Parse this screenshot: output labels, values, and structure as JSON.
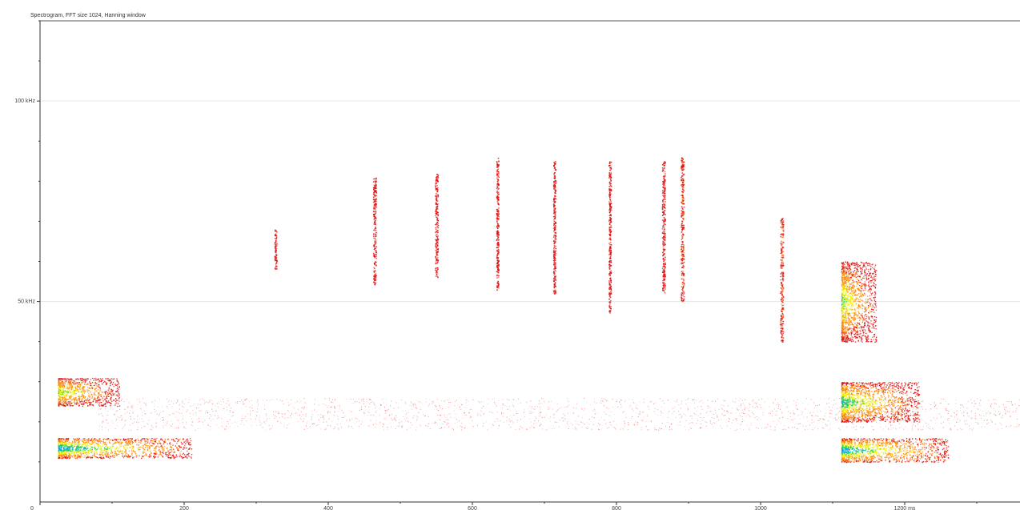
{
  "title": "Spectrogram, FFT size 1024, Hanning window",
  "chart_data": {
    "type": "heatmap",
    "title": "Spectrogram, FFT size 1024, Hanning window",
    "x_unit": "ms",
    "y_unit": "kHz",
    "xlim": [
      0,
      1360
    ],
    "ylim": [
      0,
      120
    ],
    "x_ticks": [
      {
        "value": 0,
        "label": "0"
      },
      {
        "value": 200,
        "label": "200"
      },
      {
        "value": 400,
        "label": "400"
      },
      {
        "value": 600,
        "label": "600"
      },
      {
        "value": 800,
        "label": "800"
      },
      {
        "value": 1000,
        "label": "1000"
      },
      {
        "value": 1200,
        "label": "1200 ms"
      }
    ],
    "y_ticks": [
      {
        "value": 100,
        "label": "100 kHz"
      },
      {
        "value": 50,
        "label": "50 kHz"
      }
    ],
    "grid": "horizontal at labeled kHz ticks",
    "colors": {
      "low": "#e01010",
      "mid": "#ff8800",
      "high": "#f0f000",
      "peak": "#20d040",
      "max": "#00a0e0",
      "grid": "#e6e6e6",
      "axis": "#333333"
    },
    "calls": [
      {
        "t": [
          25,
          110
        ],
        "f": [
          24,
          31
        ],
        "intensity": 0.8
      },
      {
        "t": [
          25,
          210
        ],
        "f": [
          11,
          16
        ],
        "intensity": 1.0
      },
      {
        "t": [
          325,
          328
        ],
        "f": [
          58,
          68
        ],
        "intensity": 0.5
      },
      {
        "t": [
          462,
          466
        ],
        "f": [
          54,
          81
        ],
        "intensity": 0.6
      },
      {
        "t": [
          548,
          552
        ],
        "f": [
          56,
          82
        ],
        "intensity": 0.6
      },
      {
        "t": [
          633,
          636
        ],
        "f": [
          53,
          86
        ],
        "intensity": 0.6
      },
      {
        "t": [
          712,
          715
        ],
        "f": [
          52,
          85
        ],
        "intensity": 0.6
      },
      {
        "t": [
          789,
          792
        ],
        "f": [
          47,
          85
        ],
        "intensity": 0.6
      },
      {
        "t": [
          863,
          867
        ],
        "f": [
          52,
          85
        ],
        "intensity": 0.7
      },
      {
        "t": [
          889,
          893
        ],
        "f": [
          50,
          86
        ],
        "intensity": 0.8
      },
      {
        "t": [
          1027,
          1031
        ],
        "f": [
          40,
          71
        ],
        "intensity": 0.8
      },
      {
        "t": [
          1112,
          1160
        ],
        "f": [
          40,
          60
        ],
        "intensity": 0.8
      },
      {
        "t": [
          1112,
          1220
        ],
        "f": [
          20,
          30
        ],
        "intensity": 0.9
      },
      {
        "t": [
          1112,
          1260
        ],
        "f": [
          10,
          16
        ],
        "intensity": 1.0
      }
    ],
    "noise_band": {
      "t": [
        80,
        1360
      ],
      "f": [
        18,
        26
      ]
    }
  }
}
